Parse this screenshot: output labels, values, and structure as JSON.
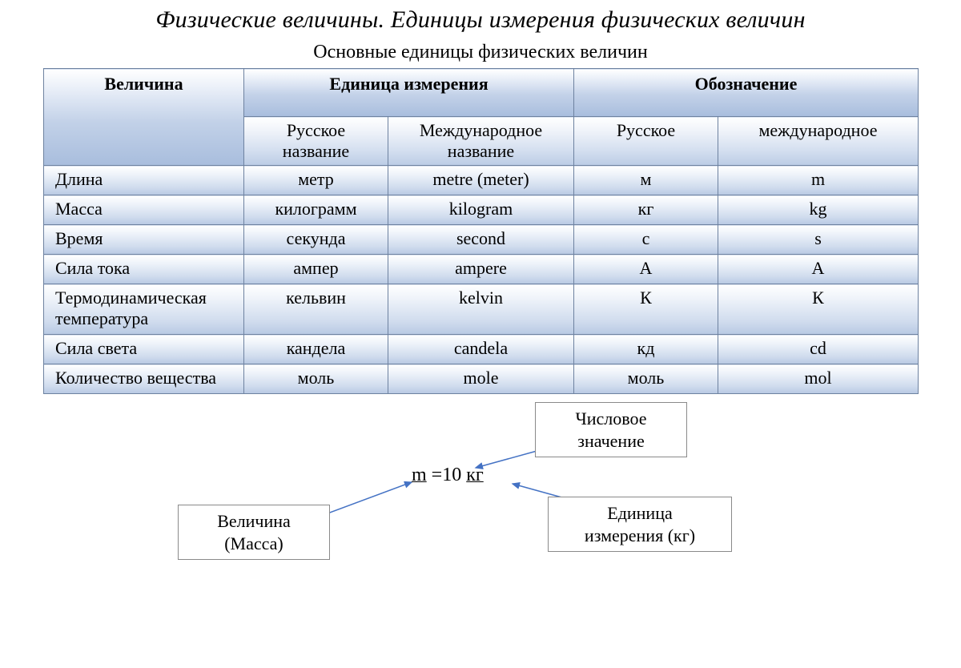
{
  "title": "Физические величины. Единицы измерения физических величин",
  "subtitle": "Основные единицы физических величин",
  "table": {
    "headers": {
      "quantity": "Величина",
      "unit": "Единица измерения",
      "symbol": "Обозначение"
    },
    "subheaders": {
      "ru_name": "Русское название",
      "intl_name": "Международное название",
      "ru_sym": "Русское",
      "intl_sym": "международное"
    },
    "rows": [
      {
        "quantity": "Длина",
        "ru_name": "метр",
        "intl_name": "metre (meter)",
        "ru_sym": "м",
        "intl_sym": "m"
      },
      {
        "quantity": "Масса",
        "ru_name": "килограмм",
        "intl_name": "kilogram",
        "ru_sym": "кг",
        "intl_sym": "kg"
      },
      {
        "quantity": "Время",
        "ru_name": "секунда",
        "intl_name": "second",
        "ru_sym": "с",
        "intl_sym": "s"
      },
      {
        "quantity": "Сила тока",
        "ru_name": "ампер",
        "intl_name": "ampere",
        "ru_sym": "А",
        "intl_sym": "A"
      },
      {
        "quantity": "Термодинамическая температура",
        "ru_name": "кельвин",
        "intl_name": "kelvin",
        "ru_sym": "К",
        "intl_sym": "К"
      },
      {
        "quantity": "Сила света",
        "ru_name": "кандела",
        "intl_name": "candela",
        "ru_sym": "кд",
        "intl_sym": "cd"
      },
      {
        "quantity": "Количество вещества",
        "ru_name": "моль",
        "intl_name": "mole",
        "ru_sym": "моль",
        "intl_sym": "mol"
      }
    ],
    "colors": {
      "border": "#6e82a0",
      "header_grad_top": "#ffffff",
      "header_grad_bottom": "#a8bddd",
      "cell_grad_top": "#ffffff",
      "cell_grad_bottom": "#b8c9e3",
      "text": "#000000"
    },
    "font_size_pt": 17,
    "title_font_size_pt": 22,
    "title_font_style": "italic"
  },
  "diagram": {
    "formula": {
      "sym": "m",
      "eq": " =10 ",
      "unit": "кг"
    },
    "boxes": {
      "quantity": {
        "line1": "Величина",
        "line2": "(Масса)"
      },
      "value": {
        "line1": "Числовое",
        "line2": "значение"
      },
      "unit": {
        "line1": "Единица",
        "line2": "измерения (кг)"
      }
    },
    "arrow_color": "#4472c4",
    "arrows": [
      {
        "from": [
          320,
          152
        ],
        "to": [
          460,
          100
        ]
      },
      {
        "from": [
          620,
          60
        ],
        "to": [
          540,
          82
        ]
      },
      {
        "from": [
          680,
          128
        ],
        "to": [
          586,
          102
        ]
      }
    ],
    "box_border_color": "#8a8a8a"
  }
}
